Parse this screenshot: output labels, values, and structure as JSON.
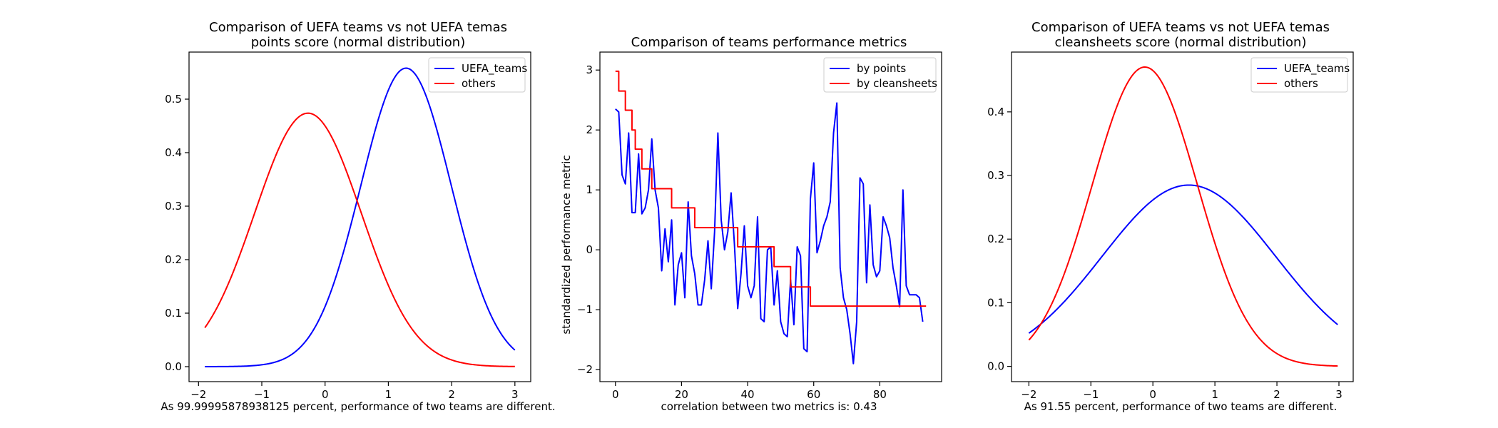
{
  "chart_data": [
    {
      "type": "line",
      "title_lines": [
        "Comparison of UEFA teams vs not UEFA temas",
        "points score (normal distribution)"
      ],
      "xlabel": "As 99.99995878938125 percent, performance of two teams are different.",
      "ylabel": "",
      "xlim": [
        -2.15,
        3.25
      ],
      "ylim": [
        -0.028,
        0.588
      ],
      "xticks": [
        -2,
        -1,
        0,
        1,
        2,
        3
      ],
      "xtick_labels": [
        "−2",
        "−1",
        "0",
        "1",
        "2",
        "3"
      ],
      "yticks": [
        0.0,
        0.1,
        0.2,
        0.3,
        0.4,
        0.5
      ],
      "ytick_labels": [
        "0.0",
        "0.1",
        "0.2",
        "0.3",
        "0.4",
        "0.5"
      ],
      "legend_position": "top-right",
      "series": [
        {
          "name": "UEFA_teams",
          "color": "#0000ff",
          "kind": "normal",
          "mean": 1.28,
          "sd": 0.715,
          "x_range": [
            -1.9,
            3.0
          ]
        },
        {
          "name": "others",
          "color": "#ff0000",
          "kind": "normal",
          "mean": -0.27,
          "sd": 0.842,
          "x_range": [
            -1.9,
            3.0
          ]
        }
      ]
    },
    {
      "type": "line",
      "title_lines": [
        "Comparison of teams performance metrics"
      ],
      "xlabel": "correlation between two metrics is: 0.43",
      "ylabel": "standardized performance metric",
      "xlim": [
        -4.7,
        98.7
      ],
      "ylim": [
        -2.2,
        3.3
      ],
      "xticks": [
        0,
        20,
        40,
        60,
        80
      ],
      "xtick_labels": [
        "0",
        "20",
        "40",
        "60",
        "80"
      ],
      "yticks": [
        -2,
        -1,
        0,
        1,
        2,
        3
      ],
      "ytick_labels": [
        "−2",
        "−1",
        "0",
        "1",
        "2",
        "3"
      ],
      "legend_position": "top-right",
      "series": [
        {
          "name": "by points",
          "color": "#0000ff",
          "kind": "points",
          "values": [
            2.35,
            2.3,
            1.25,
            1.1,
            1.95,
            0.62,
            0.62,
            1.6,
            0.6,
            0.7,
            1.0,
            1.85,
            1.0,
            0.7,
            -0.35,
            0.35,
            -0.2,
            0.5,
            -0.92,
            -0.25,
            -0.05,
            -0.8,
            0.8,
            -0.1,
            -0.4,
            -0.92,
            -0.92,
            -0.5,
            0.15,
            -0.65,
            0.3,
            1.95,
            0.5,
            0.0,
            0.3,
            0.95,
            0.1,
            -0.98,
            -0.4,
            0.4,
            -0.6,
            -0.8,
            -0.6,
            0.55,
            -1.15,
            -1.2,
            0.0,
            0.05,
            -0.92,
            -0.35,
            -1.2,
            -1.4,
            -1.45,
            -0.5,
            -1.25,
            0.05,
            -0.1,
            -1.65,
            -1.7,
            0.85,
            1.45,
            -0.05,
            0.15,
            0.4,
            0.55,
            0.8,
            1.95,
            2.45,
            -0.3,
            -0.8,
            -1.0,
            -1.4,
            -1.9,
            -1.2,
            1.2,
            1.1,
            -0.55,
            0.75,
            -0.25,
            -0.45,
            -0.35,
            0.55,
            0.4,
            0.2,
            -0.3,
            -0.6,
            -0.95,
            1.0,
            -0.6,
            -0.75,
            -0.75,
            -0.75,
            -0.8,
            -1.2
          ]
        },
        {
          "name": "by cleansheets",
          "color": "#ff0000",
          "kind": "step",
          "steps": [
            [
              0,
              2.98
            ],
            [
              1,
              2.65
            ],
            [
              3,
              2.33
            ],
            [
              5,
              2.0
            ],
            [
              6,
              1.68
            ],
            [
              8,
              1.35
            ],
            [
              11,
              1.02
            ],
            [
              17,
              0.7
            ],
            [
              24,
              0.37
            ],
            [
              37,
              0.05
            ],
            [
              48,
              -0.28
            ],
            [
              53,
              -0.62
            ],
            [
              59,
              -0.94
            ],
            [
              94,
              -0.94
            ]
          ]
        }
      ]
    },
    {
      "type": "line",
      "title_lines": [
        "Comparison of UEFA teams vs not UEFA temas",
        "cleansheets score (normal distribution)"
      ],
      "xlabel": "As 91.55 percent, performance of two teams are different.",
      "ylabel": "",
      "xlim": [
        -2.28,
        3.23
      ],
      "ylim": [
        -0.024,
        0.494
      ],
      "xticks": [
        -2,
        -1,
        0,
        1,
        2,
        3
      ],
      "xtick_labels": [
        "−2",
        "−1",
        "0",
        "1",
        "2",
        "3"
      ],
      "yticks": [
        0.0,
        0.1,
        0.2,
        0.3,
        0.4
      ],
      "ytick_labels": [
        "0.0",
        "0.1",
        "0.2",
        "0.3",
        "0.4"
      ],
      "legend_position": "top-right",
      "series": [
        {
          "name": "UEFA_teams",
          "color": "#0000ff",
          "kind": "normal",
          "mean": 0.58,
          "sd": 1.4,
          "x_range": [
            -2.0,
            2.98
          ]
        },
        {
          "name": "others",
          "color": "#ff0000",
          "kind": "normal",
          "mean": -0.13,
          "sd": 0.848,
          "x_range": [
            -2.0,
            2.98
          ]
        }
      ]
    }
  ]
}
